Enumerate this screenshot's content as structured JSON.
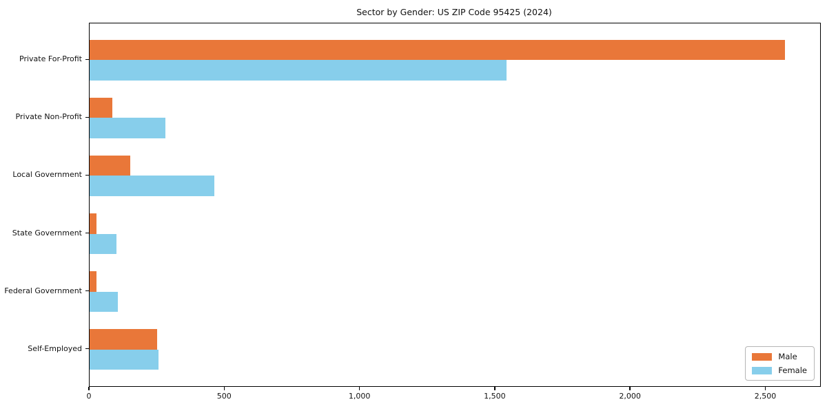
{
  "chart_data": {
    "type": "bar",
    "orientation": "horizontal",
    "title": "Sector by Gender: US ZIP Code 95425 (2024)",
    "xlabel": "",
    "ylabel": "",
    "categories": [
      "Private For-Profit",
      "Private Non-Profit",
      "Local Government",
      "State Government",
      "Federal Government",
      "Self-Employed"
    ],
    "series": [
      {
        "name": "Male",
        "color": "#e97739",
        "values": [
          2570,
          85,
          150,
          25,
          25,
          250
        ]
      },
      {
        "name": "Female",
        "color": "#87ceeb",
        "values": [
          1540,
          280,
          460,
          100,
          105,
          255
        ]
      }
    ],
    "xlim": [
      0,
      2700
    ],
    "x_ticks": [
      {
        "value": 0,
        "label": "0"
      },
      {
        "value": 500,
        "label": "500"
      },
      {
        "value": 1000,
        "label": "1,000"
      },
      {
        "value": 1500,
        "label": "1,500"
      },
      {
        "value": 2000,
        "label": "2,000"
      },
      {
        "value": 2500,
        "label": "2,500"
      }
    ],
    "grid": false,
    "legend_position": "lower right",
    "legend_title": ""
  }
}
